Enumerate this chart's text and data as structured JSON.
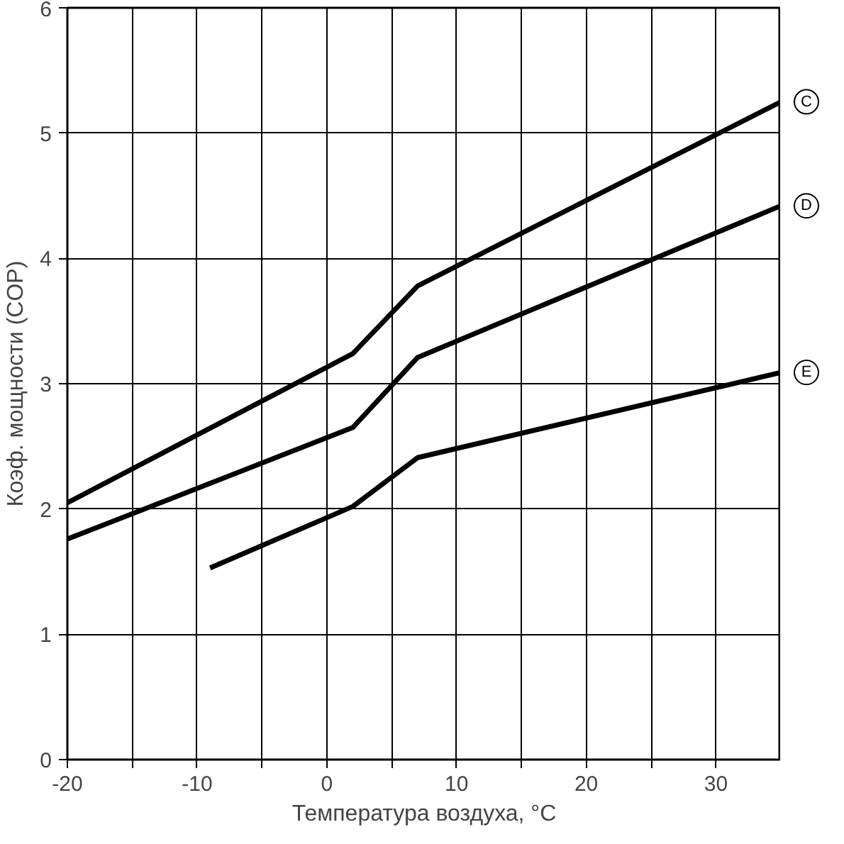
{
  "chart_data": {
    "type": "line",
    "xlabel": "Температура воздуха, °C",
    "ylabel": "Коэф. мощности (COP)",
    "xlim": [
      -20,
      35
    ],
    "ylim": [
      0,
      6
    ],
    "xticks": [
      -20,
      {
        "value": -15,
        "label": null
      },
      -10,
      {
        "value": -5,
        "label": null
      },
      0,
      {
        "value": 5,
        "label": null
      },
      10,
      {
        "value": 15,
        "label": null
      },
      20,
      {
        "value": 25,
        "label": null
      },
      30
    ],
    "yticks": [
      0,
      1,
      2,
      3,
      4,
      5,
      6
    ],
    "grid": true,
    "marker": "none",
    "line_style": "solid",
    "series": [
      {
        "name": "C",
        "color": "#000000",
        "x": [
          -20,
          2,
          7,
          35
        ],
        "values": [
          2.05,
          3.24,
          3.78,
          5.25
        ]
      },
      {
        "name": "D",
        "color": "#000000",
        "x": [
          -20,
          2,
          7,
          35
        ],
        "values": [
          1.76,
          2.65,
          3.21,
          4.42
        ]
      },
      {
        "name": "E",
        "color": "#000000",
        "x": [
          -9,
          2,
          7,
          35
        ],
        "values": [
          1.53,
          2.02,
          2.41,
          3.09
        ]
      }
    ]
  }
}
